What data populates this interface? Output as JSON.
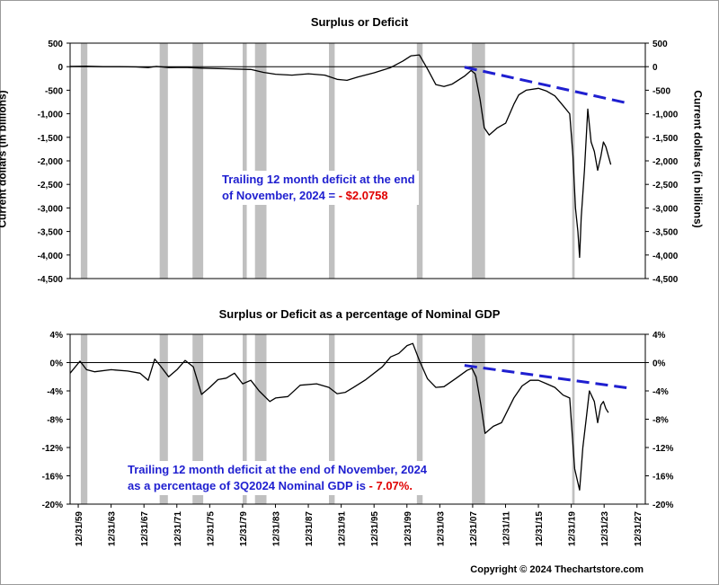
{
  "chart_data": [
    {
      "type": "line",
      "title": "Surplus or Deficit",
      "ylabel": "Current dollars (in billions)",
      "ylim": [
        -4500,
        500
      ],
      "yticks": [
        500,
        0,
        -500,
        -1000,
        -1500,
        -2000,
        -2500,
        -3000,
        -3500,
        -4000,
        -4500
      ],
      "ytick_labels": [
        "500",
        "0",
        "-500",
        "-1,000",
        "-1,500",
        "-2,000",
        "-2,500",
        "-3,000",
        "-3,500",
        "-4,000",
        "-4,500"
      ],
      "xlim": [
        1959.0,
        2029.0
      ],
      "zero_line": true,
      "grid": false,
      "series": [
        {
          "color": "#000000",
          "x": [
            1959.0,
            1961.0,
            1963.0,
            1965.0,
            1967.0,
            1968.5,
            1969.5,
            1971.0,
            1973.0,
            1975.0,
            1977.0,
            1979.0,
            1981.0,
            1982.5,
            1984.0,
            1986.0,
            1988.0,
            1990.0,
            1991.5,
            1992.7,
            1994.0,
            1996.0,
            1998.0,
            1999.5,
            2000.5,
            2001.5,
            2002.5,
            2003.5,
            2004.5,
            2005.5,
            2007.0,
            2007.8,
            2008.3,
            2008.9,
            2009.4,
            2010.0,
            2011.0,
            2012.0,
            2013.0,
            2013.6,
            2014.5,
            2016.0,
            2017.0,
            2018.0,
            2019.0,
            2019.8,
            2020.2,
            2020.5,
            2020.8,
            2021.0,
            2021.2,
            2021.6,
            2022.0,
            2022.4,
            2022.8,
            2023.2,
            2023.6,
            2023.9,
            2024.2,
            2024.8
          ],
          "values": [
            5,
            10,
            0,
            0,
            -5,
            -20,
            5,
            -20,
            -15,
            -30,
            -40,
            -50,
            -60,
            -120,
            -160,
            -180,
            -150,
            -180,
            -270,
            -290,
            -220,
            -130,
            -20,
            120,
            230,
            250,
            -50,
            -380,
            -420,
            -370,
            -200,
            -80,
            -150,
            -700,
            -1300,
            -1450,
            -1300,
            -1200,
            -800,
            -600,
            -500,
            -460,
            -520,
            -620,
            -830,
            -1000,
            -1900,
            -3000,
            -3500,
            -4050,
            -3200,
            -2200,
            -900,
            -1600,
            -1800,
            -2200,
            -1900,
            -1600,
            -1700,
            -2080
          ]
        }
      ],
      "trendline": {
        "color": "#1f1fd0",
        "style": "dashed",
        "x": [
          2007.0,
          2027.0
        ],
        "y": [
          -10,
          -780
        ]
      },
      "recessions": [
        [
          1960.3,
          1961.1
        ],
        [
          1969.9,
          1970.9
        ],
        [
          1973.9,
          1975.2
        ],
        [
          1980.0,
          1980.5
        ],
        [
          1981.5,
          1982.9
        ],
        [
          1990.5,
          1991.2
        ],
        [
          2001.2,
          2001.9
        ],
        [
          2007.9,
          2009.5
        ],
        [
          2020.1,
          2020.4
        ]
      ]
    },
    {
      "type": "line",
      "title": "Surplus or Deficit as a percentage of Nominal GDP",
      "ylim": [
        -20,
        4
      ],
      "yticks": [
        4,
        0,
        -4,
        -8,
        -12,
        -16,
        -20
      ],
      "ytick_labels": [
        "4%",
        "0%",
        "-4%",
        "-8%",
        "-12%",
        "-16%",
        "-20%"
      ],
      "xlim": [
        1959.0,
        2029.0
      ],
      "xticks": [
        1959.99,
        1963.99,
        1967.99,
        1971.99,
        1975.99,
        1979.99,
        1983.99,
        1987.99,
        1991.99,
        1995.99,
        1999.99,
        2003.99,
        2007.99,
        2011.99,
        2015.99,
        2019.99,
        2023.99,
        2027.99
      ],
      "xtick_labels": [
        "12/31/59",
        "12/31/63",
        "12/31/67",
        "12/31/71",
        "12/31/75",
        "12/31/79",
        "12/31/83",
        "12/31/87",
        "12/31/91",
        "12/31/95",
        "12/31/99",
        "12/31/03",
        "12/31/07",
        "12/31/11",
        "12/31/15",
        "12/31/19",
        "12/31/23",
        "12/31/27"
      ],
      "zero_line": true,
      "grid": false,
      "series": [
        {
          "color": "#000000",
          "x": [
            1959.0,
            1960.2,
            1961.0,
            1962.0,
            1964.0,
            1966.0,
            1967.5,
            1968.5,
            1969.3,
            1970.0,
            1971.0,
            1972.0,
            1973.0,
            1974.0,
            1975.0,
            1976.0,
            1977.0,
            1978.0,
            1979.0,
            1980.0,
            1981.0,
            1982.0,
            1983.3,
            1984.0,
            1985.5,
            1987.0,
            1989.0,
            1990.5,
            1991.5,
            1992.5,
            1993.5,
            1995.0,
            1997.0,
            1998.0,
            1999.0,
            2000.0,
            2000.7,
            2001.5,
            2002.5,
            2003.5,
            2004.5,
            2006.0,
            2007.3,
            2007.9,
            2008.4,
            2009.0,
            2009.5,
            2010.5,
            2011.5,
            2013.0,
            2014.0,
            2015.0,
            2016.0,
            2017.0,
            2018.0,
            2019.0,
            2019.8,
            2020.1,
            2020.4,
            2020.7,
            2021.0,
            2021.4,
            2021.8,
            2022.2,
            2022.8,
            2023.2,
            2023.6,
            2023.9,
            2024.2,
            2024.5
          ],
          "values": [
            -1.5,
            0.2,
            -1.0,
            -1.3,
            -1.0,
            -1.2,
            -1.5,
            -2.5,
            0.5,
            -0.5,
            -2.0,
            -1.0,
            0.3,
            -0.6,
            -4.5,
            -3.5,
            -2.4,
            -2.2,
            -1.5,
            -3.0,
            -2.5,
            -4.0,
            -5.5,
            -5.0,
            -4.8,
            -3.2,
            -3.0,
            -3.5,
            -4.4,
            -4.2,
            -3.5,
            -2.4,
            -0.6,
            0.8,
            1.3,
            2.4,
            2.7,
            0.3,
            -2.3,
            -3.5,
            -3.4,
            -2.2,
            -1.1,
            -0.8,
            -2.0,
            -6.0,
            -10.0,
            -9.0,
            -8.5,
            -5.0,
            -3.3,
            -2.5,
            -2.5,
            -3.0,
            -3.5,
            -4.6,
            -5.0,
            -10.0,
            -15.0,
            -16.5,
            -18.0,
            -12.0,
            -8.0,
            -4.0,
            -5.5,
            -8.5,
            -6.0,
            -5.5,
            -6.5,
            -7.07
          ]
        }
      ],
      "trendline": {
        "color": "#1f1fd0",
        "style": "dashed",
        "x": [
          2007.0,
          2027.0
        ],
        "y": [
          -0.4,
          -3.6
        ]
      },
      "recessions": [
        [
          1960.3,
          1961.1
        ],
        [
          1969.9,
          1970.9
        ],
        [
          1973.9,
          1975.2
        ],
        [
          1980.0,
          1980.5
        ],
        [
          1981.5,
          1982.9
        ],
        [
          1990.5,
          1991.2
        ],
        [
          2001.2,
          2001.9
        ],
        [
          2007.9,
          2009.5
        ],
        [
          2020.1,
          2020.4
        ]
      ]
    }
  ],
  "annotations": {
    "top_line1": "Trailing 12 month deficit at the end",
    "top_line2_prefix": "of November, 2024 = ",
    "top_line2_value": "- $2.0758",
    "bottom_line1": "Trailing 12 month deficit at the end of November, 2024",
    "bottom_line2_prefix": "as a percentage of 3Q2024 Nominal GDP  is ",
    "bottom_line2_value": "- 7.07%."
  },
  "copyright": "Copyright © 2024 Thechartstore.com",
  "colors": {
    "recession": "#c0c0c0",
    "series": "#000000",
    "trend": "#1f1fd0",
    "highlight": "#e00000"
  }
}
